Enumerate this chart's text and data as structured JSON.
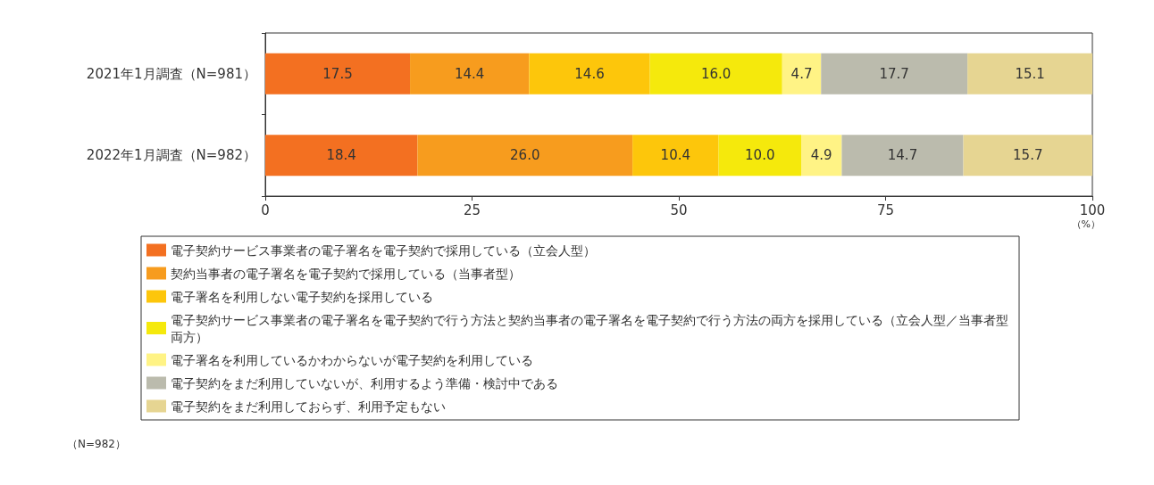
{
  "chart_data": {
    "type": "bar",
    "orientation": "horizontal",
    "stacked": true,
    "legend": "bottom",
    "grid": false,
    "categories": [
      "2021年1月調査（N=981）",
      "2022年1月調査（N=982）"
    ],
    "xlim": [
      0,
      100
    ],
    "xticks": [
      0,
      25,
      50,
      75,
      100
    ],
    "xlabel": "（%）",
    "annotations": [
      "（N=982）"
    ],
    "series": [
      {
        "name": "電子契約サービス事業者の電子署名を電子契約で採用している（立会人型）",
        "color": "#f37021",
        "values": [
          17.5,
          18.4
        ],
        "value_labels": [
          "17.5",
          "18.4"
        ]
      },
      {
        "name": "契約当事者の電子署名を電子契約で採用している（当事者型）",
        "color": "#f79c1e",
        "values": [
          14.4,
          26.0
        ],
        "value_labels": [
          "14.4",
          "26.0"
        ]
      },
      {
        "name": "電子署名を利用しない電子契約を採用している",
        "color": "#fdc60b",
        "values": [
          14.6,
          10.4
        ],
        "value_labels": [
          "14.6",
          "10.4"
        ]
      },
      {
        "name": "電子契約サービス事業者の電子署名を電子契約で行う方法と契約当事者の電子署名を電子契約で行う方法の両方を採用している（立会人型／当事者型両方）",
        "color": "#f5e90c",
        "values": [
          16.0,
          10.0
        ],
        "value_labels": [
          "16.0",
          "10.0"
        ]
      },
      {
        "name": "電子署名を利用しているかわからないが電子契約を利用している",
        "color": "#fff385",
        "values": [
          4.7,
          4.9
        ],
        "value_labels": [
          "4.7",
          "4.9"
        ]
      },
      {
        "name": "電子契約をまだ利用していないが、利用するよう準備・検討中である",
        "color": "#bbbbad",
        "values": [
          17.7,
          14.7
        ],
        "value_labels": [
          "17.7",
          "14.7"
        ]
      },
      {
        "name": "電子契約をまだ利用しておらず、利用予定もない",
        "color": "#e6d592",
        "values": [
          15.1,
          15.7
        ],
        "value_labels": [
          "15.1",
          "15.7"
        ]
      }
    ]
  }
}
